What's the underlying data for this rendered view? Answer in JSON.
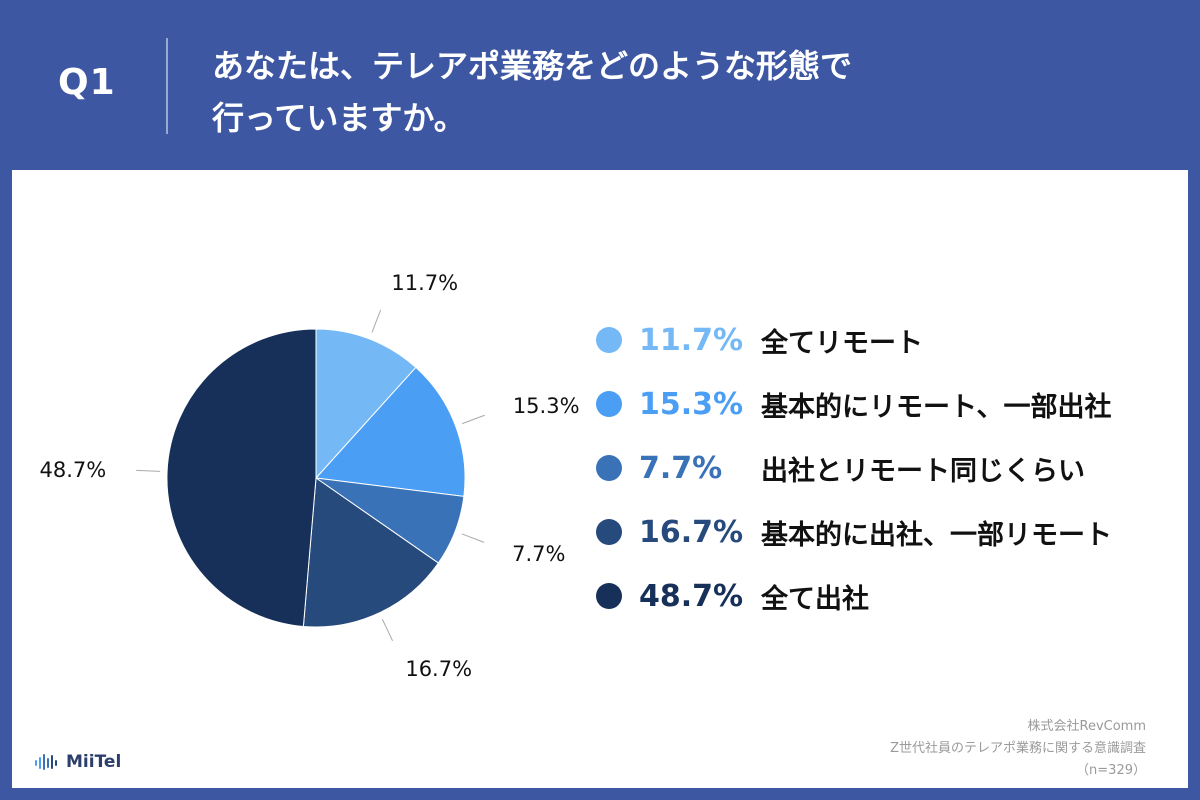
{
  "header": {
    "q_label": "Q1",
    "title_line1": "あなたは、テレアポ業務をどのような形態で",
    "title_line2": "行っていますか。"
  },
  "colors": {
    "header_bg": "#3d57a3",
    "slice_1": "#74b8f6",
    "slice_2": "#4a9ef4",
    "slice_3": "#3a72b8",
    "slice_4": "#264a7c",
    "slice_5": "#16305a"
  },
  "chart_data": {
    "type": "pie",
    "categories": [
      "全てリモート",
      "基本的にリモート、一部出社",
      "出社とリモート同じくらい",
      "基本的に出社、一部リモート",
      "全て出社"
    ],
    "values": [
      11.7,
      15.3,
      7.7,
      16.7,
      48.7
    ],
    "value_labels": [
      "11.7%",
      "15.3%",
      "7.7%",
      "16.7%",
      "48.7%"
    ],
    "colors": [
      "#74b8f6",
      "#4a9ef4",
      "#3a72b8",
      "#264a7c",
      "#16305a"
    ],
    "start_angle": "12 o'clock",
    "direction": "clockwise",
    "legend_position": "right"
  },
  "source": {
    "line1": "株式会社RevComm",
    "line2": "Z世代社員のテレアポ業務に関する意識調査",
    "line3": "（n=329）"
  },
  "logo": {
    "text": "MiiTel",
    "icon": "soundwave-icon"
  }
}
